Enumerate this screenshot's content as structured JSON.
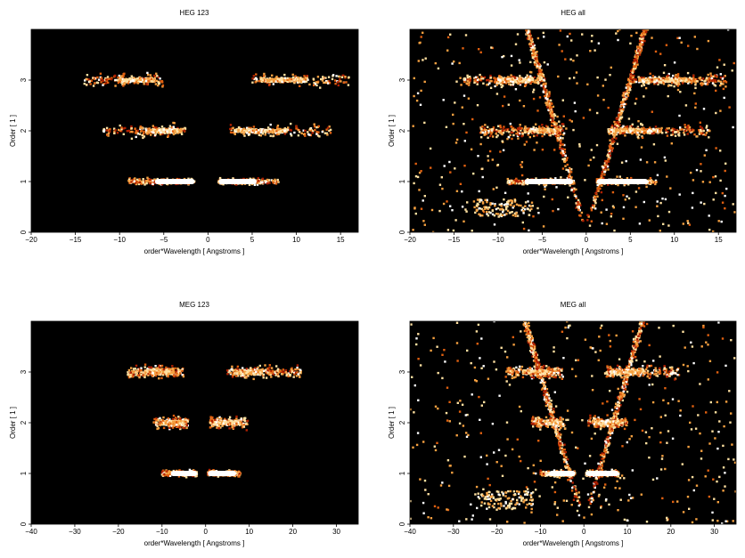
{
  "chart_data": [
    {
      "type": "heatmap",
      "title": "HEG 123",
      "xlabel": "order*Wavelength [ Angstroms ]",
      "ylabel": "Order [ 1 ]",
      "xlim": [
        -20,
        17
      ],
      "ylim": [
        0,
        4
      ],
      "xticks": [
        -20,
        -15,
        -10,
        -5,
        0,
        5,
        10,
        15
      ],
      "yticks": [
        0,
        1,
        2,
        3
      ],
      "colormap": [
        "#000000",
        "#5a0000",
        "#b02000",
        "#e06010",
        "#f5a040",
        "#ffe0a0",
        "#ffffff"
      ],
      "background": "#000000",
      "clusters": [
        {
          "order": 1,
          "x_range": [
            -9,
            -1.5
          ],
          "core": [
            -6,
            -1.5
          ],
          "intensity": "high"
        },
        {
          "order": 1,
          "x_range": [
            1.2,
            8
          ],
          "core": [
            1.2,
            5.5
          ],
          "intensity": "high"
        },
        {
          "order": 2,
          "x_range": [
            -12,
            -2.5
          ],
          "core": [
            -7,
            -3
          ],
          "intensity": "medium"
        },
        {
          "order": 2,
          "x_range": [
            2.5,
            14
          ],
          "core": [
            3,
            9
          ],
          "intensity": "medium"
        },
        {
          "order": 3,
          "x_range": [
            -14,
            -5
          ],
          "core": [
            -10,
            -6
          ],
          "intensity": "medium"
        },
        {
          "order": 3,
          "x_range": [
            5,
            16
          ],
          "core": [
            6,
            11
          ],
          "intensity": "medium"
        }
      ]
    },
    {
      "type": "heatmap",
      "title": "HEG all",
      "xlabel": "order*Wavelength [ Angstroms ]",
      "ylabel": "Order [ 1 ]",
      "xlim": [
        -20,
        17
      ],
      "ylim": [
        0,
        4
      ],
      "xticks": [
        -20,
        -15,
        -10,
        -5,
        0,
        5,
        10,
        15
      ],
      "yticks": [
        0,
        1,
        2,
        3
      ],
      "colormap": [
        "#000000",
        "#5a0000",
        "#b02000",
        "#e06010",
        "#f5a040",
        "#ffe0a0",
        "#ffffff"
      ],
      "background": "#000000",
      "clusters": [
        {
          "order": 1,
          "x_range": [
            -9,
            -1.5
          ],
          "core": [
            -7,
            -1.5
          ],
          "intensity": "high"
        },
        {
          "order": 1,
          "x_range": [
            1.2,
            8
          ],
          "core": [
            1.2,
            7
          ],
          "intensity": "high"
        },
        {
          "order": 2,
          "x_range": [
            -12,
            -2.5
          ],
          "core": [
            -7,
            -3.5
          ],
          "intensity": "high"
        },
        {
          "order": 2,
          "x_range": [
            2.5,
            14
          ],
          "core": [
            2.5,
            8.5
          ],
          "intensity": "high"
        },
        {
          "order": 3,
          "x_range": [
            -14,
            -5
          ],
          "core": [
            -10,
            -6
          ],
          "intensity": "high"
        },
        {
          "order": 3,
          "x_range": [
            5,
            16
          ],
          "core": [
            6,
            12
          ],
          "intensity": "high"
        }
      ],
      "features": [
        "V-shaped diagonal bands from origin",
        "low-order streak near order 0.3, x -13 to -8",
        "scattered background counts"
      ]
    },
    {
      "type": "heatmap",
      "title": "MEG 123",
      "xlabel": "order*Wavelength [ Angstroms ]",
      "ylabel": "Order [ 1 ]",
      "xlim": [
        -40,
        35
      ],
      "ylim": [
        0,
        4
      ],
      "xticks": [
        -40,
        -30,
        -20,
        -10,
        0,
        10,
        20,
        30
      ],
      "yticks": [
        0,
        1,
        2,
        3
      ],
      "colormap": [
        "#000000",
        "#5a0000",
        "#b02000",
        "#e06010",
        "#f5a040",
        "#ffe0a0",
        "#ffffff"
      ],
      "background": "#000000",
      "clusters": [
        {
          "order": 1,
          "x_range": [
            -10,
            -2
          ],
          "core": [
            -8,
            -2
          ],
          "intensity": "high"
        },
        {
          "order": 1,
          "x_range": [
            0.5,
            8
          ],
          "core": [
            0.5,
            7
          ],
          "intensity": "high"
        },
        {
          "order": 2,
          "x_range": [
            -12,
            -4
          ],
          "core": [
            -10,
            -5
          ],
          "intensity": "medium"
        },
        {
          "order": 2,
          "x_range": [
            1,
            10
          ],
          "core": [
            1,
            8
          ],
          "intensity": "medium"
        },
        {
          "order": 3,
          "x_range": [
            -18,
            -5
          ],
          "core": [
            -14,
            -8
          ],
          "intensity": "high"
        },
        {
          "order": 3,
          "x_range": [
            5,
            22
          ],
          "core": [
            7,
            13
          ],
          "intensity": "high"
        }
      ]
    },
    {
      "type": "heatmap",
      "title": "MEG all",
      "xlabel": "order*Wavelength [ Angstroms ]",
      "ylabel": "Order [ 1 ]",
      "xlim": [
        -40,
        35
      ],
      "ylim": [
        0,
        4
      ],
      "xticks": [
        -40,
        -30,
        -20,
        -10,
        0,
        10,
        20,
        30
      ],
      "yticks": [
        0,
        1,
        2,
        3
      ],
      "colormap": [
        "#000000",
        "#5a0000",
        "#b02000",
        "#e06010",
        "#f5a040",
        "#ffe0a0",
        "#ffffff"
      ],
      "background": "#000000",
      "clusters": [
        {
          "order": 1,
          "x_range": [
            -10,
            -2
          ],
          "core": [
            -8,
            -2
          ],
          "intensity": "high"
        },
        {
          "order": 1,
          "x_range": [
            0.5,
            8
          ],
          "core": [
            0.5,
            8
          ],
          "intensity": "high"
        },
        {
          "order": 2,
          "x_range": [
            -12,
            -4
          ],
          "core": [
            -9,
            -5
          ],
          "intensity": "medium"
        },
        {
          "order": 2,
          "x_range": [
            1,
            10
          ],
          "core": [
            2,
            9
          ],
          "intensity": "medium"
        },
        {
          "order": 3,
          "x_range": [
            -18,
            -5
          ],
          "core": [
            -14,
            -7
          ],
          "intensity": "high"
        },
        {
          "order": 3,
          "x_range": [
            5,
            22
          ],
          "core": [
            6,
            14
          ],
          "intensity": "high"
        }
      ],
      "features": [
        "V-shaped diagonal bands from origin",
        "low-order streak near order 0.5, x -30 to -15",
        "scattered background counts"
      ]
    }
  ]
}
